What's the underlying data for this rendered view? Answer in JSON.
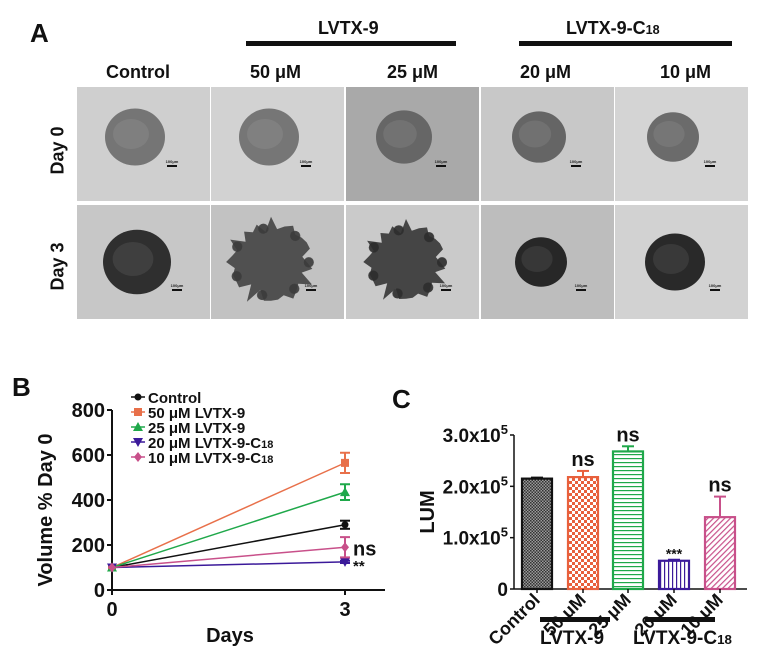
{
  "figure": {
    "panelA": {
      "letter": "A",
      "group_labels": {
        "lvtx9": "LVTX-9",
        "lvtx9c18_main": "LVTX-9-C",
        "lvtx9c18_sub": "18"
      },
      "column_headers": [
        "Control",
        "50 μM",
        "25 μM",
        "20 μM",
        "10 μM"
      ],
      "row_labels": [
        "Day 0",
        "Day 3"
      ],
      "scale_bar_label": "100μm",
      "tiles": [
        [
          {
            "bg": "#cfcfcf",
            "blob": "#6a6a6a",
            "r": 30,
            "shape": "round"
          },
          {
            "bg": "#d2d2d2",
            "blob": "#6c6c6c",
            "r": 30,
            "shape": "round"
          },
          {
            "bg": "#a9a9a9",
            "blob": "#5e5e5e",
            "r": 28,
            "shape": "round"
          },
          {
            "bg": "#c8c8c8",
            "blob": "#5a5a5a",
            "r": 27,
            "shape": "round"
          },
          {
            "bg": "#d4d4d4",
            "blob": "#5f5f5f",
            "r": 26,
            "shape": "round"
          }
        ],
        [
          {
            "bg": "#c7c7c7",
            "blob": "#1e1e1e",
            "r": 34,
            "shape": "round"
          },
          {
            "bg": "#c2c2c2",
            "blob": "#3c3c3c",
            "r": 42,
            "shape": "spiky"
          },
          {
            "bg": "#cacaca",
            "blob": "#2e2e2e",
            "r": 40,
            "shape": "spiky"
          },
          {
            "bg": "#bdbdbd",
            "blob": "#161616",
            "r": 26,
            "shape": "round"
          },
          {
            "bg": "#d2d2d2",
            "blob": "#161616",
            "r": 30,
            "shape": "round"
          }
        ]
      ]
    },
    "panelB": {
      "letter": "B",
      "ns_label": "ns",
      "sig_label": "**"
    },
    "panelC": {
      "letter": "C",
      "group_labels": {
        "lvtx9": "LVTX-9",
        "lvtx9c18_main": "LVTX-9-C",
        "lvtx9c18_sub": "18"
      }
    }
  },
  "chart_data": [
    {
      "type": "line",
      "panel": "B",
      "title": "",
      "xlabel": "Days",
      "ylabel": "Volume % Day 0",
      "x": [
        0,
        3
      ],
      "x_ticks": [
        "0",
        "3"
      ],
      "y_ticks": [
        "0",
        "200",
        "400",
        "600",
        "800"
      ],
      "ylim": [
        0,
        800
      ],
      "grid": false,
      "legend_position": "top-left",
      "series": [
        {
          "name": "Control",
          "color": "#111111",
          "marker": "circle",
          "values": [
            100,
            290
          ],
          "error": [
            0,
            18
          ]
        },
        {
          "name": "50 μM LVTX-9",
          "color": "#e8704a",
          "marker": "square",
          "values": [
            100,
            565
          ],
          "error": [
            0,
            45
          ]
        },
        {
          "name": "25 μM LVTX-9",
          "color": "#1fa84a",
          "marker": "triangle-up",
          "values": [
            100,
            435
          ],
          "error": [
            0,
            35
          ]
        },
        {
          "name": "20 μM LVTX-9-C18",
          "color": "#3b1a9a",
          "marker": "triangle-down",
          "values": [
            100,
            125
          ],
          "error": [
            0,
            5
          ]
        },
        {
          "name": "10 μM LVTX-9-C18",
          "color": "#c8508a",
          "marker": "diamond",
          "values": [
            100,
            190
          ],
          "error": [
            0,
            45
          ]
        }
      ],
      "annotations": [
        {
          "text": "ns",
          "series": "10 μM LVTX-9-C18",
          "x": 3
        },
        {
          "text": "**",
          "series": "20 μM LVTX-9-C18",
          "x": 3
        }
      ]
    },
    {
      "type": "bar",
      "panel": "C",
      "title": "",
      "xlabel": "",
      "ylabel": "LUM",
      "categories": [
        "Control",
        "50 μM",
        "25 μM",
        "20 μM",
        "10 μM"
      ],
      "values": [
        215000,
        218000,
        268000,
        55000,
        140000
      ],
      "errors": [
        2000,
        12000,
        10000,
        2000,
        40000
      ],
      "colors": [
        "#111111",
        "#e8603c",
        "#1fa84a",
        "#3b1a9a",
        "#c8508a"
      ],
      "patterns": [
        "crosshatch-dense",
        "checker",
        "horizontal",
        "vertical",
        "diagonal"
      ],
      "y_ticks": [
        "0",
        "1.0x10⁵",
        "2.0x10⁵",
        "3.0x10⁵"
      ],
      "ylim": [
        0,
        300000
      ],
      "grid": false,
      "annotations": [
        "",
        "ns",
        "ns",
        "***",
        "ns"
      ],
      "groups": [
        {
          "label": "LVTX-9",
          "members": [
            "50 μM",
            "25 μM"
          ]
        },
        {
          "label": "LVTX-9-C18",
          "members": [
            "20 μM",
            "10 μM"
          ]
        }
      ]
    }
  ]
}
